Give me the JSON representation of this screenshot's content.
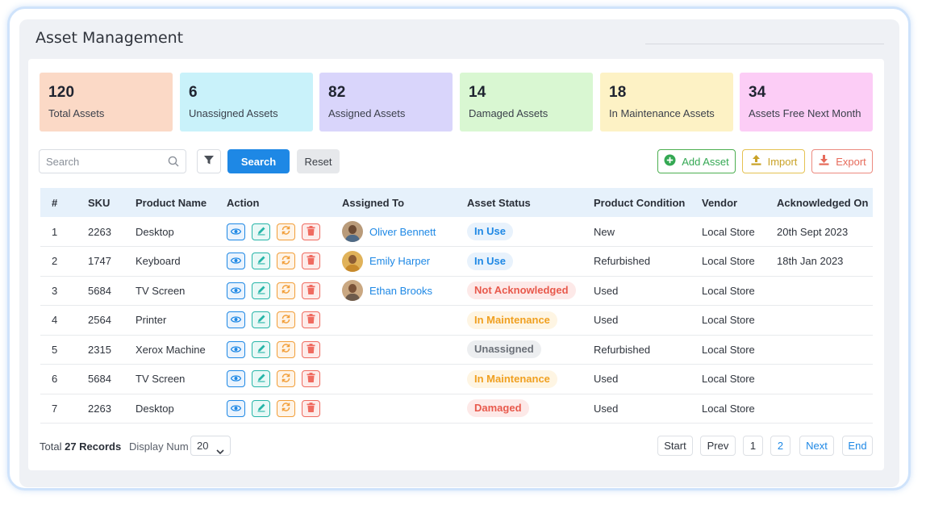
{
  "page": {
    "title": "Asset Management"
  },
  "stats": [
    {
      "value": "120",
      "label": "Total Assets",
      "bg": "#fbd9c6"
    },
    {
      "value": "6",
      "label": "Unassigned Assets",
      "bg": "#c9f2fa"
    },
    {
      "value": "82",
      "label": "Assigned Assets",
      "bg": "#d9d5fb"
    },
    {
      "value": "14",
      "label": "Damaged Assets",
      "bg": "#d9f7d2"
    },
    {
      "value": "18",
      "label": "In Maintenance Assets",
      "bg": "#fdf2c5"
    },
    {
      "value": "34",
      "label": "Assets Free Next Month",
      "bg": "#fccdf6"
    }
  ],
  "toolbar": {
    "search_placeholder": "Search",
    "search_label": "Search",
    "reset_label": "Reset",
    "add_label": "Add Asset",
    "import_label": "Import",
    "export_label": "Export"
  },
  "table": {
    "headers": [
      "#",
      "SKU",
      "Product Name",
      "Action",
      "Assigned To",
      "Asset Status",
      "Product Condition",
      "Vendor",
      "Acknowledged On"
    ],
    "rows": [
      {
        "idx": "1",
        "sku": "2263",
        "product": "Desktop",
        "assigned": "Oliver Bennett",
        "status": "In Use",
        "status_key": "inuse",
        "condition": "New",
        "vendor": "Local Store",
        "ack": "20th Sept 2023"
      },
      {
        "idx": "2",
        "sku": "1747",
        "product": "Keyboard",
        "assigned": "Emily Harper",
        "status": "In Use",
        "status_key": "inuse",
        "condition": "Refurbished",
        "vendor": "Local Store",
        "ack": "18th Jan 2023"
      },
      {
        "idx": "3",
        "sku": "5684",
        "product": "TV Screen",
        "assigned": "Ethan Brooks",
        "status": "Not Acknowledged",
        "status_key": "notack",
        "condition": "Used",
        "vendor": "Local Store",
        "ack": ""
      },
      {
        "idx": "4",
        "sku": "2564",
        "product": "Printer",
        "assigned": "",
        "status": "In Maintenance",
        "status_key": "maint",
        "condition": "Used",
        "vendor": "Local Store",
        "ack": ""
      },
      {
        "idx": "5",
        "sku": "2315",
        "product": "Xerox Machine",
        "assigned": "",
        "status": "Unassigned",
        "status_key": "unassigned",
        "condition": "Refurbished",
        "vendor": "Local Store",
        "ack": ""
      },
      {
        "idx": "6",
        "sku": "5684",
        "product": "TV Screen",
        "assigned": "",
        "status": "In Maintenance",
        "status_key": "maint",
        "condition": "Used",
        "vendor": "Local Store",
        "ack": ""
      },
      {
        "idx": "7",
        "sku": "2263",
        "product": "Desktop",
        "assigned": "",
        "status": "Damaged",
        "status_key": "damaged",
        "condition": "Used",
        "vendor": "Local Store",
        "ack": ""
      }
    ]
  },
  "status_colors": {
    "inuse": {
      "bg": "#e8f2fc",
      "fg": "#1e88e5"
    },
    "notack": {
      "bg": "#fde9e8",
      "fg": "#e8594c"
    },
    "maint": {
      "bg": "#fef5e3",
      "fg": "#f0a020"
    },
    "unassigned": {
      "bg": "#eceef0",
      "fg": "#6b7078"
    },
    "damaged": {
      "bg": "#fde9e8",
      "fg": "#e8594c"
    }
  },
  "footer": {
    "total_label": "Total",
    "total_records": "27 Records",
    "display_label": "Display Num",
    "display_value": "20",
    "pagination": [
      "Start",
      "Prev",
      "1",
      "2",
      "Next",
      "End"
    ]
  }
}
